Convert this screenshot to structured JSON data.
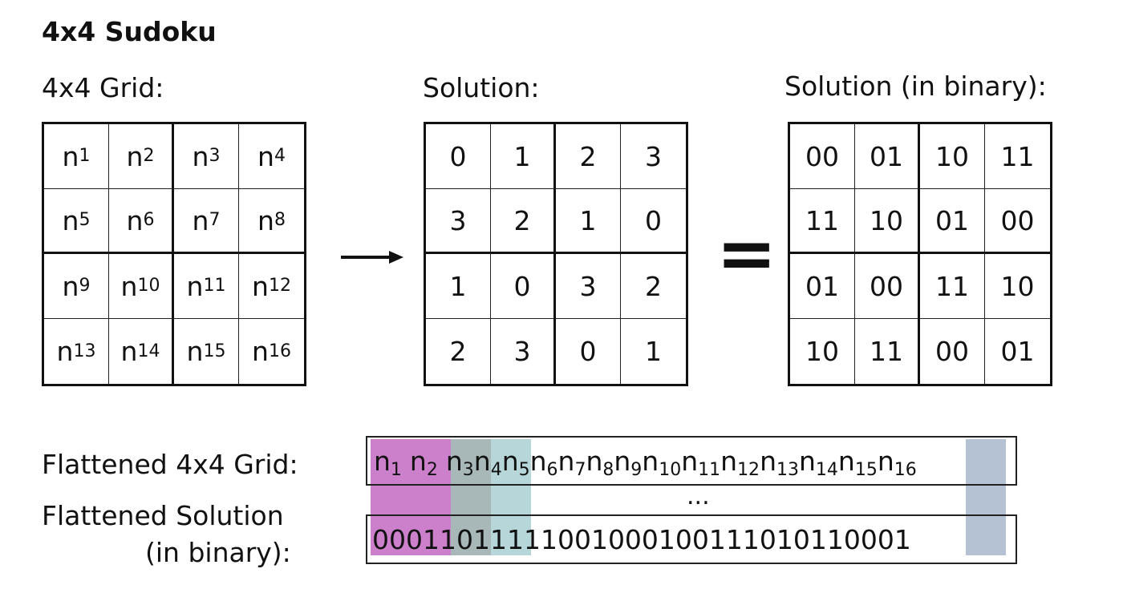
{
  "title": "4x4 Sudoku",
  "grid_label": "4x4 Grid:",
  "solution_label": "Solution:",
  "binary_label": "Solution (in binary):",
  "grid_cells": [
    {
      "base": "n",
      "sub": "1"
    },
    {
      "base": "n",
      "sub": "2"
    },
    {
      "base": "n",
      "sub": "3"
    },
    {
      "base": "n",
      "sub": "4"
    },
    {
      "base": "n",
      "sub": "5"
    },
    {
      "base": "n",
      "sub": "6"
    },
    {
      "base": "n",
      "sub": "7"
    },
    {
      "base": "n",
      "sub": "8"
    },
    {
      "base": "n",
      "sub": "9"
    },
    {
      "base": "n",
      "sub": "10"
    },
    {
      "base": "n",
      "sub": "11"
    },
    {
      "base": "n",
      "sub": "12"
    },
    {
      "base": "n",
      "sub": "13"
    },
    {
      "base": "n",
      "sub": "14"
    },
    {
      "base": "n",
      "sub": "15"
    },
    {
      "base": "n",
      "sub": "16"
    }
  ],
  "solution_cells": [
    "0",
    "1",
    "2",
    "3",
    "3",
    "2",
    "1",
    "0",
    "1",
    "0",
    "3",
    "2",
    "2",
    "3",
    "0",
    "1"
  ],
  "binary_cells": [
    "00",
    "01",
    "10",
    "11",
    "11",
    "10",
    "01",
    "00",
    "01",
    "00",
    "11",
    "10",
    "10",
    "11",
    "00",
    "01"
  ],
  "arrow_icon": "right-arrow-icon",
  "equals_sign": "=",
  "flattened_grid_label": "Flattened 4x4 Grid:",
  "flattened_solution_label_line1": "Flattened Solution",
  "flattened_solution_label_line2": "(in binary):",
  "flattened_solution_binary": "00011011111001000100111010110001",
  "ellipsis": "...",
  "colors": {
    "n1_n2": "#cc80cc",
    "n3": "#a8b8b8",
    "n4": "#b6d6da",
    "n16": "#b4c2d4"
  }
}
